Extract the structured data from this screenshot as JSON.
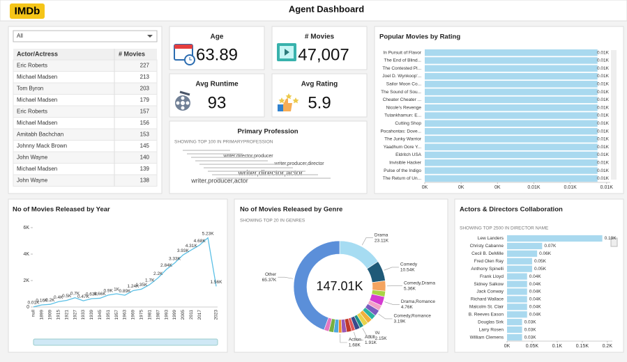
{
  "header": {
    "logo": "IMDb",
    "title": "Agent Dashboard"
  },
  "filter": {
    "selected": "All"
  },
  "table": {
    "columns": [
      "Actor/Actress",
      "# Movies"
    ],
    "rows": [
      [
        "Eric Roberts",
        227
      ],
      [
        "Michael Madsen",
        213
      ],
      [
        "Tom Byron",
        203
      ],
      [
        "Michael Madsen",
        179
      ],
      [
        "Eric Roberts",
        157
      ],
      [
        "Michael Madsen",
        156
      ],
      [
        "Amitabh Bachchan",
        153
      ],
      [
        "Johnny Mack Brown",
        145
      ],
      [
        "John Wayne",
        140
      ],
      [
        "Michael Madsen",
        139
      ],
      [
        "John Wayne",
        138
      ]
    ]
  },
  "kpis": [
    {
      "label": "Age",
      "value": "63.89"
    },
    {
      "label": "# Movies",
      "value": "47,007"
    },
    {
      "label": "Avg Runtime",
      "value": "93"
    },
    {
      "label": "Avg Rating",
      "value": "5.9"
    }
  ],
  "word_cloud": {
    "title": "Primary Profession",
    "subtitle": "SHOWING TOP 100 IN PRIMARYPROFESSION",
    "words": [
      "writer,director,producer",
      "writer,producer,director",
      "writer,director,actor",
      "writer,producer,actor"
    ]
  },
  "chart_data": [
    {
      "type": "hbar",
      "title": "Popular Movies by Rating",
      "categories": [
        "In Pursuit of Flavor",
        "The End of Blind...",
        "The Contested Pl...",
        "Joel D. Wynkoop'...",
        "Sailor Moon Co...",
        "The Sound of Sou...",
        "Cheater Cheater ...",
        "Nicole's Revenge",
        "Tutankhamun: E...",
        "Cutting Shop",
        "Pocahontas: Dove...",
        "The Junky Warrior",
        "Yaadhum Oore Y...",
        "Eldritch USA",
        "Invisible Hacker",
        "Pulse of the Indigo",
        "The Return of Un..."
      ],
      "values": [
        9.5,
        9.5,
        9.5,
        9.5,
        9.5,
        9.5,
        9.5,
        9.5,
        9.5,
        9.5,
        9.5,
        9.5,
        9.5,
        9.5,
        9.5,
        9.5,
        9.5
      ],
      "value_labels": [
        "0.01K",
        "0.01K",
        "0.01K",
        "0.01K",
        "0.01K",
        "0.01K",
        "0.01K",
        "0.01K",
        "0.01K",
        "0.01K",
        "0.01K",
        "0.01K",
        "0.01K",
        "0.01K",
        "0.01K",
        "0.01K",
        "0.01K"
      ],
      "color": "#a9d9ef",
      "xlim": [
        0,
        10.2
      ],
      "xticks": [
        {
          "value": 0,
          "label": "0K"
        },
        {
          "value": 2,
          "label": "0K"
        },
        {
          "value": 4,
          "label": "0K"
        },
        {
          "value": 6,
          "label": "0.01K"
        },
        {
          "value": 8,
          "label": "0.01K"
        },
        {
          "value": 10,
          "label": "0.01K"
        }
      ]
    },
    {
      "type": "line",
      "title": "No of Movies Released by Year",
      "categories": [
        "null",
        "1899",
        "1909",
        "1915",
        "1921",
        "1927",
        "1933",
        "1939",
        "1945",
        "1951",
        "1957",
        "1963",
        "1969",
        "1975",
        "1981",
        "1987",
        "1993",
        "1999",
        "2005",
        "2011",
        "2017",
        null,
        "2023"
      ],
      "values": [
        10,
        160,
        200,
        400,
        500,
        700,
        470,
        630,
        660,
        900,
        1000,
        890,
        1240,
        1350,
        1700,
        2200,
        2840,
        3330,
        3930,
        4310,
        4680,
        5230,
        1560
      ],
      "value_labels": [
        "0.01K",
        "0.16K",
        "0.2K",
        "0.4K",
        "0.5K",
        "0.7K",
        "0.47K",
        "0.63K",
        "0.66K",
        "0.9K",
        "1K",
        "0.89K",
        "1.24K",
        "1.35K",
        "1.7K",
        "2.2K",
        "2.84K",
        "3.33K",
        "3.93K",
        "4.31K",
        "4.68K",
        "5.23K",
        "1.56K"
      ],
      "color": "#5bc0e6",
      "ylim": [
        0,
        6000
      ],
      "yticks": [
        0,
        {
          "value": 2000,
          "label": "2K"
        },
        {
          "value": 4000,
          "label": "4K"
        },
        {
          "value": 6000,
          "label": "6K"
        }
      ]
    },
    {
      "type": "donut",
      "title": "No of Movies Released by Genre",
      "subtitle": "SHOWING TOP 20 IN GENRES",
      "center_label": "147.01K",
      "categories": [
        "Drama",
        "Comedy",
        "Comedy,Drama",
        null,
        "Drama,Romance",
        null,
        "Comedy,Romance",
        null,
        null,
        null,
        "\\N",
        null,
        "Adult",
        null,
        null,
        "Action",
        null,
        null,
        null,
        "Other"
      ],
      "values": [
        23110,
        10540,
        5360,
        2900,
        4760,
        2800,
        3190,
        2700,
        2700,
        2600,
        2150,
        2600,
        1910,
        2600,
        2500,
        1680,
        2500,
        2500,
        2540,
        65370
      ],
      "value_labels": [
        "23.11K",
        "10.54K",
        "5.36K",
        null,
        "4.76K",
        null,
        "3.19K",
        null,
        null,
        null,
        "2.15K",
        null,
        "1.91K",
        null,
        null,
        "1.68K",
        null,
        null,
        null,
        "65.37K"
      ],
      "colors": [
        "#a6dcf2",
        "#1f5a78",
        "#f4a460",
        "#a9d445",
        "#d43bd0",
        "#f2a1c8",
        "#7a5cc0",
        "#2bb3a0",
        "#f0b13c",
        "#e8d44d",
        "#1f8f8a",
        "#3a4a8c",
        "#e15759",
        "#c0392b",
        "#9b59b6",
        "#f28e2b",
        "#4ea8de",
        "#76b041",
        "#e377c2",
        "#5b8fd9"
      ]
    },
    {
      "type": "hbar",
      "title": "Actors & Directors Collaboration",
      "subtitle": "SHOWING TOP 2500 IN DIRECTOR NAME",
      "categories": [
        "Lew Landers",
        "Christy Cabanne",
        "Cecil B. DeMille",
        "Fred Olen Ray",
        "Anthony Spinelli",
        "Frank Lloyd",
        "Sidney Salkow",
        "Jack Conway",
        "Richard Wallace",
        "Malcolm St. Clair",
        "B. Reeves Eason",
        "Douglas Sirk",
        "Larry Rosen",
        "William Clemens"
      ],
      "values": [
        190,
        70,
        60,
        50,
        50,
        40,
        40,
        40,
        40,
        40,
        40,
        30,
        30,
        30
      ],
      "value_labels": [
        "0.19K",
        "0.07K",
        "0.06K",
        "0.05K",
        "0.05K",
        "0.04K",
        "0.04K",
        "0.04K",
        "0.04K",
        "0.04K",
        "0.04K",
        "0.03K",
        "0.03K",
        "0.03K"
      ],
      "color": "#a9d9ef",
      "xlim": [
        0,
        210
      ],
      "xticks": [
        {
          "value": 0,
          "label": "0K"
        },
        {
          "value": 50,
          "label": "0.05K"
        },
        {
          "value": 100,
          "label": "0.1K"
        },
        {
          "value": 150,
          "label": "0.15K"
        },
        {
          "value": 200,
          "label": "0.2K"
        }
      ]
    }
  ]
}
